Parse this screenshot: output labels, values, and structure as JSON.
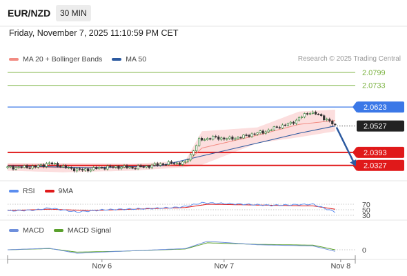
{
  "header": {
    "pair": "EUR/NZD",
    "timeframe": "30 MIN"
  },
  "date_line": "Friday, November 7, 2025 11:10:59 PM CET",
  "legend": {
    "items": [
      {
        "label": "MA 20 + Bollinger Bands",
        "color": "#f28b82"
      },
      {
        "label": "MA 50",
        "color": "#2c5aa0"
      }
    ],
    "credit": "Research © 2025 Trading Central"
  },
  "colors": {
    "green": "#7cb342",
    "blue": "#3b78e7",
    "red": "#e0191a",
    "bull": "#2e7d32",
    "bear": "#333333",
    "macd": "#6e8fdc",
    "signal": "#5aa02c"
  },
  "chart_data": [
    {
      "type": "candlestick",
      "ylim": [
        2.027,
        2.083
      ],
      "price_levels": [
        {
          "label": "2.0799",
          "value": 2.0799,
          "kind": "resistance",
          "color": "#7cb342"
        },
        {
          "label": "2.0733",
          "value": 2.0733,
          "kind": "resistance",
          "color": "#7cb342"
        },
        {
          "label": "2.0623",
          "value": 2.0623,
          "kind": "pivot",
          "color": "#3b78e7"
        },
        {
          "label": "2.0527",
          "value": 2.0527,
          "kind": "last",
          "color": "#222222"
        },
        {
          "label": "2.0393",
          "value": 2.0393,
          "kind": "target",
          "color": "#e0191a"
        },
        {
          "label": "2.0327",
          "value": 2.0327,
          "kind": "target",
          "color": "#e0191a"
        }
      ],
      "close_path": [
        [
          0,
          2.0316
        ],
        [
          6,
          2.0318
        ],
        [
          10,
          2.032
        ],
        [
          15,
          2.0338
        ],
        [
          18,
          2.0328
        ],
        [
          22,
          2.0312
        ],
        [
          27,
          2.0303
        ],
        [
          30,
          2.0308
        ],
        [
          35,
          2.0317
        ],
        [
          40,
          2.032
        ],
        [
          45,
          2.0315
        ],
        [
          50,
          2.0322
        ],
        [
          55,
          2.0334
        ],
        [
          60,
          2.0338
        ],
        [
          64,
          2.034
        ],
        [
          66,
          2.038
        ],
        [
          69,
          2.0455
        ],
        [
          74,
          2.0468
        ],
        [
          80,
          2.0462
        ],
        [
          84,
          2.047
        ],
        [
          88,
          2.0485
        ],
        [
          93,
          2.05
        ],
        [
          98,
          2.0525
        ],
        [
          102,
          2.054
        ],
        [
          106,
          2.0575
        ],
        [
          109,
          2.0598
        ],
        [
          112,
          2.0583
        ],
        [
          115,
          2.056
        ],
        [
          118,
          2.0527
        ]
      ],
      "ma50_path": [
        [
          0,
          2.0325
        ],
        [
          30,
          2.0315
        ],
        [
          55,
          2.0325
        ],
        [
          70,
          2.0375
        ],
        [
          90,
          2.044
        ],
        [
          105,
          2.049
        ],
        [
          118,
          2.0527
        ]
      ],
      "bollinger": {
        "upper": [
          [
            0,
            2.034
          ],
          [
            20,
            2.034
          ],
          [
            45,
            2.0336
          ],
          [
            64,
            2.035
          ],
          [
            70,
            2.05
          ],
          [
            90,
            2.052
          ],
          [
            105,
            2.06
          ],
          [
            118,
            2.061
          ]
        ],
        "lower": [
          [
            0,
            2.03
          ],
          [
            20,
            2.0292
          ],
          [
            45,
            2.03
          ],
          [
            64,
            2.0318
          ],
          [
            70,
            2.033
          ],
          [
            90,
            2.044
          ],
          [
            105,
            2.047
          ],
          [
            118,
            2.05
          ]
        ]
      },
      "projection": {
        "from": [
          118,
          2.0527
        ],
        "to": [
          126,
          2.0327
        ]
      }
    },
    {
      "type": "line",
      "legend": [
        "RSI",
        "9MA"
      ],
      "ticks": [
        "70",
        "50",
        "30"
      ],
      "rsi": [
        [
          0,
          46
        ],
        [
          10,
          49
        ],
        [
          15,
          56
        ],
        [
          25,
          42
        ],
        [
          35,
          50
        ],
        [
          50,
          54
        ],
        [
          60,
          58
        ],
        [
          64,
          62
        ],
        [
          70,
          75
        ],
        [
          80,
          72
        ],
        [
          95,
          66
        ],
        [
          110,
          70
        ],
        [
          118,
          42
        ]
      ],
      "ma9": [
        [
          0,
          47
        ],
        [
          15,
          52
        ],
        [
          30,
          47
        ],
        [
          45,
          52
        ],
        [
          64,
          58
        ],
        [
          72,
          70
        ],
        [
          90,
          67
        ],
        [
          110,
          64
        ],
        [
          118,
          52
        ]
      ]
    },
    {
      "type": "line",
      "legend": [
        "MACD",
        "MACD Signal"
      ],
      "ticks": [
        "0"
      ],
      "macd": [
        [
          0,
          0.0
        ],
        [
          15,
          0.0004
        ],
        [
          25,
          -0.0009
        ],
        [
          40,
          -0.0004
        ],
        [
          64,
          0.0003
        ],
        [
          72,
          0.0022
        ],
        [
          90,
          0.0013
        ],
        [
          110,
          0.001
        ],
        [
          118,
          -0.0004
        ]
      ],
      "signal": [
        [
          0,
          0.0
        ],
        [
          15,
          0.0003
        ],
        [
          25,
          -0.0006
        ],
        [
          40,
          -0.0004
        ],
        [
          64,
          0.0002
        ],
        [
          72,
          0.0018
        ],
        [
          90,
          0.0014
        ],
        [
          110,
          0.0012
        ],
        [
          118,
          0.0
        ]
      ]
    }
  ],
  "x_axis": {
    "ticks": [
      {
        "label": "Nov 6",
        "x": 34
      },
      {
        "label": "Nov 7",
        "x": 78
      },
      {
        "label": "Nov 8",
        "x": 120
      }
    ],
    "xlim": [
      0,
      126
    ]
  },
  "sub_legends": {
    "rsi": [
      {
        "label": "RSI",
        "color": "#5b8def"
      },
      {
        "label": "9MA",
        "color": "#e0191a"
      }
    ],
    "macd": [
      {
        "label": "MACD",
        "color": "#6e8fdc"
      },
      {
        "label": "MACD Signal",
        "color": "#5aa02c"
      }
    ]
  }
}
